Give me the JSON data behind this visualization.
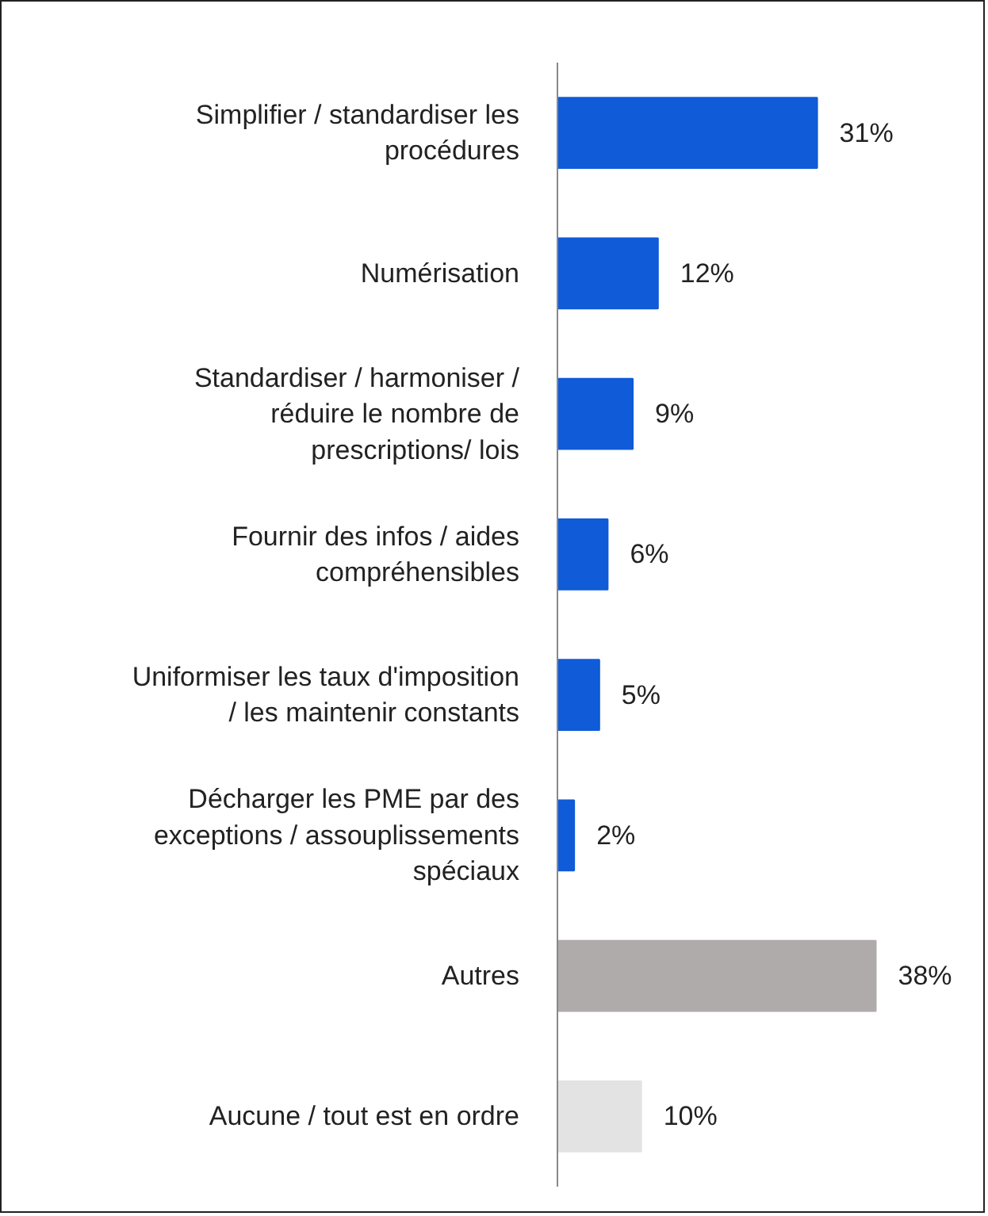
{
  "chart_data": {
    "type": "bar",
    "orientation": "horizontal",
    "categories": [
      "Simplifier / standardiser les procédures",
      "Numérisation",
      "Standardiser / harmoniser / réduire le nombre de prescriptions/ lois",
      "Fournir des infos / aides compréhensibles",
      "Uniformiser les taux d'imposition / les maintenir constants",
      "Décharger les PME par des exceptions / assouplissements spéciaux",
      "Autres",
      "Aucune / tout est en ordre"
    ],
    "values": [
      31,
      12,
      9,
      6,
      5,
      2,
      38,
      10
    ],
    "colors": [
      "#0f5bd8",
      "#0f5bd8",
      "#0f5bd8",
      "#0f5bd8",
      "#0f5bd8",
      "#0f5bd8",
      "#b0abab",
      "#e3e3e3"
    ],
    "value_labels": [
      "31%",
      "12%",
      "9%",
      "6%",
      "5%",
      "2%",
      "38%",
      "10%"
    ],
    "grid": false
  }
}
